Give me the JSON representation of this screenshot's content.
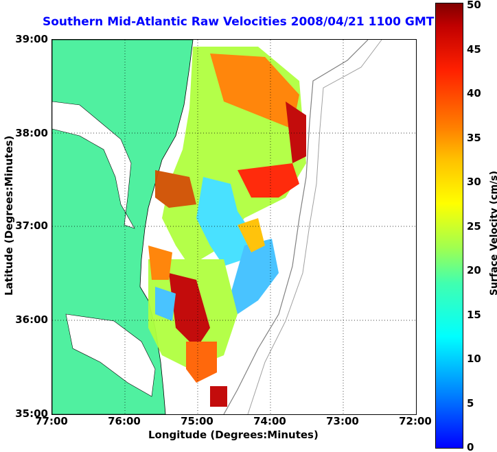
{
  "title": "Southern Mid-Atlantic Raw Velocities 2008/04/21 1100 GMT",
  "map": {
    "x_label": "Longitude (Degrees:Minutes)",
    "y_label": "Latitude (Degrees:Minutes)",
    "lon_ticks": [
      "77:00",
      "76:00",
      "75:00",
      "74:00",
      "73:00",
      "72:00"
    ],
    "lat_ticks": [
      "39:00",
      "38:00",
      "37:00",
      "36:00",
      "35:00"
    ],
    "lon_range": [
      -77,
      -72
    ],
    "lat_range": [
      35,
      39
    ],
    "land_color": "#50f0a0",
    "grid": "dotted"
  },
  "colorbar": {
    "label": "Surface Velocity (cm/s)",
    "ticks": [
      "0",
      "5",
      "10",
      "15",
      "20",
      "25",
      "30",
      "35",
      "40",
      "45",
      "50"
    ],
    "range": [
      0,
      50
    ],
    "colormap": "jet"
  }
}
